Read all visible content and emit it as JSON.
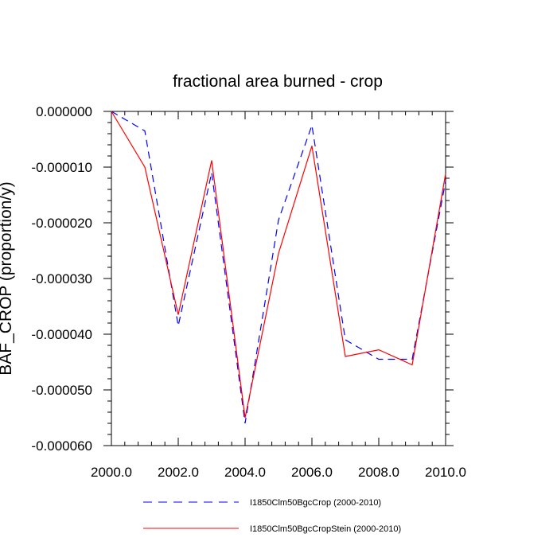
{
  "chart_data": {
    "type": "line",
    "title": "fractional area burned - crop",
    "xlabel": "",
    "ylabel": "BAF_CROP  (proportion/y)",
    "xlim": [
      2000,
      2010
    ],
    "ylim": [
      -6e-05,
      0
    ],
    "x_ticks": [
      "2000.0",
      "2002.0",
      "2004.0",
      "2006.0",
      "2008.0",
      "2010.0"
    ],
    "y_ticks": [
      "0.000000",
      "-0.000010",
      "-0.000020",
      "-0.000030",
      "-0.000040",
      "-0.000050",
      "-0.000060"
    ],
    "grid": false,
    "legend_position": "bottom",
    "x": [
      2000,
      2001,
      2002,
      2003,
      2004,
      2005,
      2006,
      2007,
      2008,
      2009,
      2010
    ],
    "series": [
      {
        "name": "I1850Clm50BgcCrop (2000-2010)",
        "color": "#0000ff",
        "style": "dashed",
        "values": [
          0.0,
          -3.5e-06,
          -3.85e-05,
          -1.1e-05,
          -5.6e-05,
          -1.95e-05,
          -2.5e-06,
          -4.1e-05,
          -4.45e-05,
          -4.45e-05,
          -1.25e-05
        ]
      },
      {
        "name": "I1850Clm50BgcCropStein (2000-2010)",
        "color": "#ff0000",
        "style": "solid",
        "values": [
          0.0,
          -1e-05,
          -3.65e-05,
          -8.8e-06,
          -5.5e-05,
          -2.55e-05,
          -6.2e-06,
          -4.4e-05,
          -4.28e-05,
          -4.55e-05,
          -1.12e-05
        ]
      }
    ]
  }
}
